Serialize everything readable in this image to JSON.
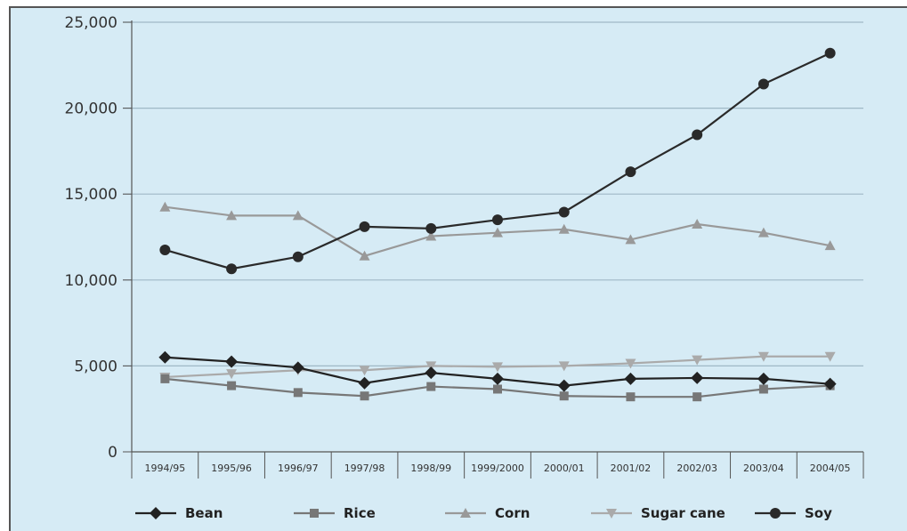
{
  "chart_data": {
    "type": "line",
    "title": "",
    "xlabel": "",
    "ylabel": "",
    "ylim": [
      0,
      25000
    ],
    "y_ticks": [
      "0",
      "5,000",
      "10,000",
      "15,000",
      "20,000",
      "25,000"
    ],
    "y_tick_values": [
      0,
      5000,
      10000,
      15000,
      20000,
      25000
    ],
    "categories": [
      "1994/95",
      "1995/96",
      "1996/97",
      "1997/98",
      "1998/99",
      "1999/2000",
      "2000/01",
      "2001/02",
      "2002/03",
      "2003/04",
      "2004/05"
    ],
    "grid": "horizontal",
    "legend_position": "bottom",
    "series": [
      {
        "name": "Bean",
        "marker": "diamond",
        "color": "#222222",
        "values": [
          5500,
          5250,
          4900,
          4000,
          4600,
          4250,
          3850,
          4250,
          4300,
          4250,
          3950
        ]
      },
      {
        "name": "Rice",
        "marker": "square",
        "color": "#777777",
        "values": [
          4250,
          3850,
          3450,
          3250,
          3800,
          3650,
          3250,
          3200,
          3200,
          3650,
          3850
        ]
      },
      {
        "name": "Corn",
        "marker": "triangle-up",
        "color": "#999999",
        "values": [
          14250,
          13750,
          13750,
          11400,
          12550,
          12750,
          12950,
          12350,
          13250,
          12750,
          12000
        ]
      },
      {
        "name": "Sugar cane",
        "marker": "triangle-down",
        "color": "#aaaaaa",
        "values": [
          4350,
          4550,
          4750,
          4750,
          5000,
          4950,
          5000,
          5150,
          5350,
          5550,
          5550
        ]
      },
      {
        "name": "Soy",
        "marker": "circle",
        "color": "#2a2a2a",
        "values": [
          11750,
          10650,
          11350,
          13100,
          13000,
          13500,
          13950,
          16300,
          18450,
          21400,
          23200
        ]
      }
    ]
  }
}
